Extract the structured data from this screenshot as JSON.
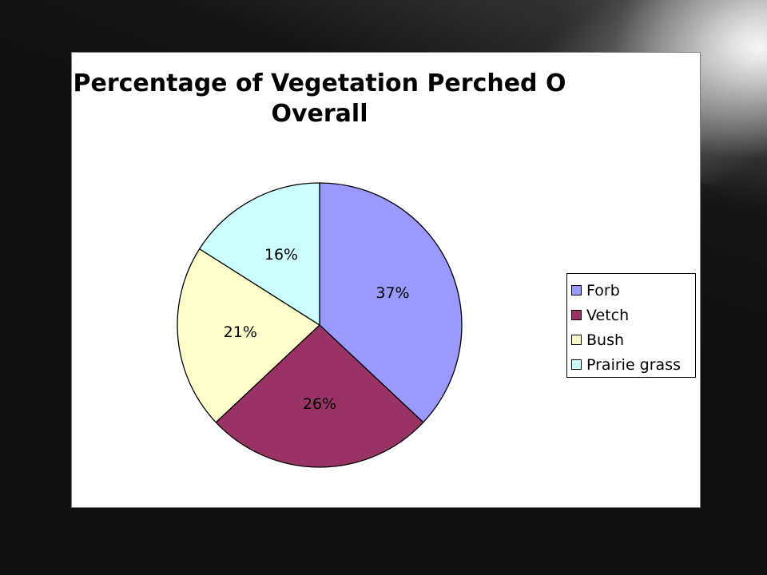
{
  "chart_data": {
    "type": "pie",
    "title": "Percentage of Vegetation Perched O\nOverall",
    "categories": [
      "Forb",
      "Vetch",
      "Bush",
      "Prairie grass"
    ],
    "values": [
      37,
      26,
      21,
      16
    ],
    "labels": [
      "37%",
      "26%",
      "21%",
      "16%"
    ],
    "colors": [
      "#9999ff",
      "#993366",
      "#ffffcc",
      "#ccffff"
    ],
    "legend_position": "right",
    "start_angle_deg": 0,
    "direction": "clockwise"
  }
}
